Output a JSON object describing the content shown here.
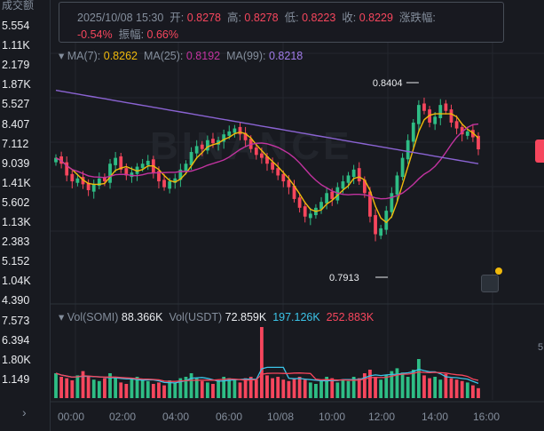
{
  "left_column": {
    "header": "成交额",
    "values": [
      "5.554",
      "1.11K",
      "2.179",
      "1.87K",
      "5.527",
      "8.407",
      "7.112",
      "9.039",
      "1.41K",
      "5.602",
      "1.13K",
      "2.383",
      "5.152",
      "1.04K",
      "4.390",
      "7.573",
      "6.394",
      "1.80K",
      "1.149"
    ],
    "chevron": "›"
  },
  "info": {
    "date": "2025/10/08 15:30",
    "open_label": "开:",
    "open": "0.8278",
    "high_label": "高:",
    "high": "0.8278",
    "low_label": "低:",
    "low": "0.8223",
    "close_label": "收:",
    "close": "0.8229",
    "change_label": "涨跌幅:",
    "change": "-0.54%",
    "amp_label": "振幅:",
    "amp": "0.66%"
  },
  "ma": {
    "ma7_label": "MA(7):",
    "ma7": "0.8262",
    "ma25_label": "MA(25):",
    "ma25": "0.8192",
    "ma99_label": "MA(99):",
    "ma99": "0.8218",
    "colors": {
      "ma7": "#f0b90b",
      "ma25": "#c233a0",
      "ma99": "#8a63d2"
    }
  },
  "vol": {
    "somi_label": "Vol(SOMI)",
    "somi": "88.366K",
    "usdt_label": "Vol(USDT)",
    "usdt": "72.859K",
    "ma1": "197.126K",
    "ma2": "252.883K",
    "colors": {
      "somi": "#eaecef",
      "ma1": "#3bc4e8",
      "ma2": "#f6465d"
    }
  },
  "annotations": {
    "high": "0.8404",
    "low": "0.7913"
  },
  "right_axis": {
    "label": "5"
  },
  "watermark": "BINANCE",
  "colors": {
    "up": "#2ebd85",
    "down": "#f6465d",
    "bg": "#181a20",
    "grid": "#23272e"
  },
  "chart_data": {
    "type": "candlestick",
    "x_labels": [
      "00:00",
      "02:00",
      "04:00",
      "06:00",
      "10/08",
      "10:00",
      "12:00",
      "14:00",
      "16:00"
    ],
    "price_high": 0.8404,
    "price_low": 0.7913,
    "candles_close": [
      0.82,
      0.818,
      0.814,
      0.812,
      0.813,
      0.811,
      0.809,
      0.811,
      0.813,
      0.812,
      0.818,
      0.82,
      0.816,
      0.814,
      0.815,
      0.817,
      0.818,
      0.819,
      0.815,
      0.812,
      0.81,
      0.812,
      0.813,
      0.816,
      0.818,
      0.822,
      0.824,
      0.823,
      0.826,
      0.825,
      0.826,
      0.828,
      0.829,
      0.83,
      0.828,
      0.826,
      0.823,
      0.821,
      0.82,
      0.818,
      0.816,
      0.814,
      0.812,
      0.81,
      0.806,
      0.803,
      0.8,
      0.801,
      0.803,
      0.805,
      0.808,
      0.806,
      0.81,
      0.812,
      0.814,
      0.816,
      0.812,
      0.808,
      0.8,
      0.794,
      0.796,
      0.802,
      0.808,
      0.814,
      0.82,
      0.826,
      0.832,
      0.838,
      0.836,
      0.832,
      0.834,
      0.838,
      0.836,
      0.832,
      0.83,
      0.828,
      0.829,
      0.827,
      0.8229
    ],
    "candles_up": [
      true,
      false,
      false,
      false,
      true,
      false,
      false,
      true,
      true,
      false,
      true,
      true,
      false,
      false,
      true,
      true,
      true,
      true,
      false,
      false,
      false,
      true,
      true,
      true,
      true,
      true,
      true,
      false,
      true,
      false,
      true,
      true,
      true,
      true,
      false,
      false,
      false,
      false,
      false,
      false,
      false,
      false,
      false,
      false,
      false,
      false,
      false,
      true,
      true,
      true,
      true,
      false,
      true,
      true,
      true,
      true,
      false,
      false,
      false,
      false,
      true,
      true,
      true,
      true,
      true,
      true,
      true,
      true,
      false,
      false,
      true,
      true,
      false,
      false,
      false,
      false,
      true,
      false,
      false
    ],
    "volume_relative": [
      0.35,
      0.3,
      0.28,
      0.25,
      0.32,
      0.38,
      0.3,
      0.26,
      0.24,
      0.28,
      0.35,
      0.3,
      0.22,
      0.2,
      0.28,
      0.3,
      0.26,
      0.24,
      0.2,
      0.22,
      0.18,
      0.25,
      0.22,
      0.28,
      0.3,
      0.35,
      0.28,
      0.24,
      0.22,
      0.2,
      0.25,
      0.3,
      0.28,
      0.26,
      0.22,
      0.28,
      0.3,
      0.26,
      1.0,
      0.32,
      0.28,
      0.3,
      0.26,
      0.24,
      0.28,
      0.3,
      0.26,
      0.22,
      0.2,
      0.24,
      0.3,
      0.28,
      0.22,
      0.26,
      0.24,
      0.3,
      0.28,
      0.35,
      0.4,
      0.3,
      0.26,
      0.32,
      0.38,
      0.42,
      0.36,
      0.3,
      0.4,
      0.55,
      0.32,
      0.28,
      0.3,
      0.26,
      0.34,
      0.28,
      0.26,
      0.24,
      0.22,
      0.18,
      0.14
    ]
  }
}
